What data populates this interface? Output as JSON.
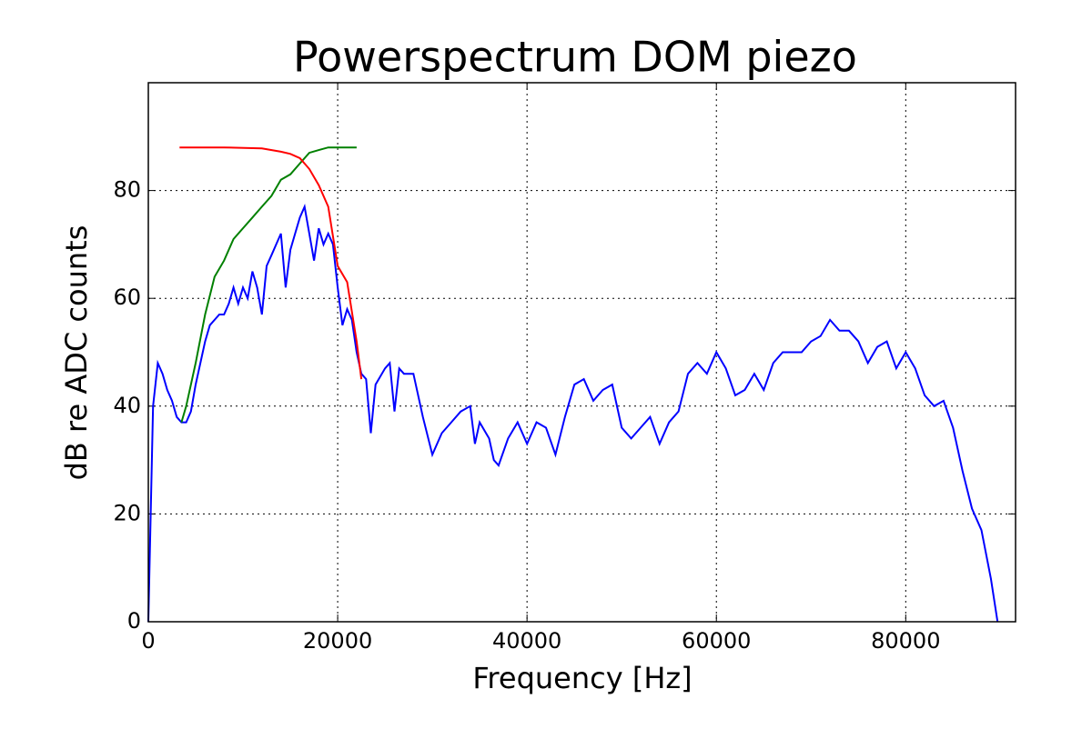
{
  "chart_data": {
    "type": "line",
    "title": "Powerspectrum DOM piezo",
    "xlabel": "Frequency [Hz]",
    "ylabel": "dB re ADC counts",
    "xlim": [
      0,
      91600
    ],
    "ylim": [
      0,
      100
    ],
    "xticks": [
      0,
      20000,
      40000,
      60000,
      80000
    ],
    "yticks": [
      0,
      20,
      40,
      60,
      80
    ],
    "grid": true,
    "series": [
      {
        "color": "#0000ff",
        "x": [
          0,
          500,
          1000,
          1500,
          2000,
          2500,
          3000,
          3500,
          4000,
          4500,
          5000,
          5500,
          6000,
          6500,
          7000,
          7500,
          8000,
          8500,
          9000,
          9500,
          10000,
          10500,
          11000,
          11500,
          12000,
          12500,
          13000,
          13500,
          14000,
          14500,
          15000,
          15500,
          16000,
          16500,
          17000,
          17500,
          18000,
          18500,
          19000,
          19500,
          20000,
          20500,
          21000,
          21500,
          22000,
          22500,
          23000,
          23500,
          24000,
          25000,
          25500,
          26000,
          26500,
          27000,
          28000,
          29000,
          30000,
          31000,
          32000,
          33000,
          34000,
          34500,
          35000,
          36000,
          36500,
          37000,
          38000,
          39000,
          40000,
          41000,
          42000,
          43000,
          44000,
          45000,
          46000,
          47000,
          48000,
          49000,
          50000,
          51000,
          52000,
          53000,
          54000,
          55000,
          56000,
          57000,
          58000,
          59000,
          60000,
          61000,
          62000,
          63000,
          64000,
          65000,
          66000,
          67000,
          68000,
          69000,
          70000,
          71000,
          72000,
          73000,
          74000,
          75000,
          76000,
          77000,
          78000,
          79000,
          80000,
          81000,
          82000,
          83000,
          84000,
          85000,
          86000,
          87000,
          88000,
          89000,
          89700
        ],
        "values": [
          0,
          40,
          48,
          46,
          43,
          41,
          38,
          37,
          37,
          39,
          44,
          48,
          52,
          55,
          56,
          57,
          57,
          59,
          62,
          59,
          62,
          60,
          65,
          62,
          57,
          66,
          68,
          70,
          72,
          62,
          69,
          72,
          75,
          77,
          72,
          67,
          73,
          70,
          72,
          70,
          62,
          55,
          58,
          56,
          50,
          46,
          45,
          35,
          44,
          47,
          48,
          39,
          47,
          46,
          46,
          38,
          31,
          35,
          37,
          39,
          40,
          33,
          37,
          34,
          30,
          29,
          34,
          37,
          33,
          37,
          36,
          31,
          38,
          44,
          45,
          41,
          43,
          44,
          36,
          34,
          36,
          38,
          33,
          37,
          39,
          46,
          48,
          46,
          50,
          47,
          42,
          43,
          46,
          43,
          48,
          50,
          50,
          50,
          52,
          53,
          56,
          54,
          54,
          52,
          48,
          51,
          52,
          47,
          50,
          47,
          42,
          40,
          41,
          36,
          28,
          21,
          17,
          8,
          0
        ]
      },
      {
        "color": "#008000",
        "x": [
          3500,
          4000,
          5000,
          6000,
          7000,
          8000,
          9000,
          10000,
          11000,
          12000,
          13000,
          14000,
          15000,
          16000,
          17000,
          18000,
          19000,
          20000,
          21000,
          22000
        ],
        "values": [
          37,
          40,
          48,
          57,
          64,
          67,
          71,
          73,
          75,
          77,
          79,
          82,
          83,
          85,
          87,
          87.5,
          88,
          88,
          88,
          88
        ]
      },
      {
        "color": "#ff0000",
        "x": [
          3300,
          8000,
          12000,
          14000,
          15000,
          16000,
          17000,
          18000,
          19000,
          20000,
          21000,
          22000,
          22500
        ],
        "values": [
          88,
          88,
          87.8,
          87.2,
          86.8,
          86,
          84,
          81,
          77,
          66,
          63,
          52,
          45
        ]
      }
    ]
  }
}
